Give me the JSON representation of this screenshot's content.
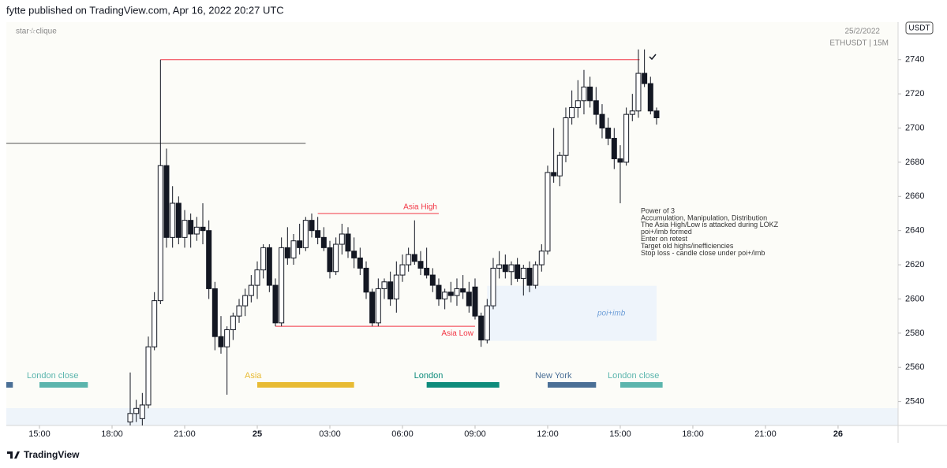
{
  "header": "fytte published on TradingView.com, Apr 16, 2022 20:27 UTC",
  "footer": "TradingView",
  "chart_data": {
    "type": "candlestick",
    "watermark": "star☆clique",
    "date_label": "25/2/2022",
    "symbol": "ETHUSDT | 15M",
    "currency": "USDT",
    "up_color": "#ffffff",
    "down_color": "#131722",
    "xlim": [
      13.63,
      50.48
    ],
    "ylim": [
      2526,
      2762
    ],
    "yticks": [
      2540,
      2560,
      2580,
      2600,
      2620,
      2640,
      2660,
      2680,
      2700,
      2720,
      2740
    ],
    "xticks": [
      {
        "value": 15,
        "label": "15:00"
      },
      {
        "value": 18,
        "label": "18:00"
      },
      {
        "value": 21,
        "label": "21:00"
      },
      {
        "value": 24,
        "label": "25"
      },
      {
        "value": 27,
        "label": "03:00"
      },
      {
        "value": 30,
        "label": "06:00"
      },
      {
        "value": 33,
        "label": "09:00"
      },
      {
        "value": 36,
        "label": "12:00"
      },
      {
        "value": 39,
        "label": "15:00"
      },
      {
        "value": 42,
        "label": "18:00"
      },
      {
        "value": 45,
        "label": "21:00"
      },
      {
        "value": 48,
        "label": "26"
      }
    ],
    "x": [
      18.75,
      19,
      19.25,
      19.5,
      19.75,
      20,
      20.25,
      20.5,
      20.75,
      21,
      21.25,
      21.5,
      21.75,
      22,
      22.25,
      22.5,
      22.75,
      23,
      23.25,
      23.5,
      23.75,
      24,
      24.25,
      24.5,
      24.75,
      25,
      25.25,
      25.5,
      25.75,
      26,
      26.25,
      26.5,
      26.75,
      27,
      27.25,
      27.5,
      27.75,
      28,
      28.25,
      28.5,
      28.75,
      29,
      29.25,
      29.5,
      29.75,
      30,
      30.25,
      30.5,
      30.75,
      31,
      31.25,
      31.5,
      31.75,
      32,
      32.25,
      32.5,
      32.75,
      33,
      33.25,
      33.5,
      33.75,
      34,
      34.25,
      34.5,
      34.75,
      35,
      35.25,
      35.5,
      35.75,
      36,
      36.25,
      36.5,
      36.75,
      37,
      37.25,
      37.5,
      37.75,
      38,
      38.25,
      38.5,
      38.75,
      39,
      39.25,
      39.5,
      39.75,
      40,
      40.25,
      40.5
    ],
    "open": [
      2528,
      2533,
      2530,
      2538,
      2572,
      2599,
      2678,
      2636,
      2656,
      2636,
      2646,
      2638,
      2642,
      2640,
      2606,
      2578,
      2572,
      2582,
      2590,
      2596,
      2602,
      2608,
      2617,
      2630,
      2608,
      2586,
      2630,
      2624,
      2634,
      2630,
      2646,
      2640,
      2636,
      2630,
      2616,
      2632,
      2638,
      2628,
      2624,
      2618,
      2604,
      2586,
      2606,
      2610,
      2600,
      2614,
      2620,
      2626,
      2622,
      2618,
      2614,
      2608,
      2600,
      2604,
      2602,
      2606,
      2604,
      2607,
      2590,
      2576,
      2596,
      2618,
      2620,
      2616,
      2620,
      2612,
      2618,
      2608,
      2620,
      2628,
      2674,
      2672,
      2684,
      2706,
      2712,
      2716,
      2724,
      2716,
      2708,
      2700,
      2694,
      2682,
      2680,
      2708,
      2710,
      2732,
      2726,
      2710
    ],
    "high": [
      2557,
      2541,
      2545,
      2578,
      2604,
      2740,
      2688,
      2666,
      2660,
      2652,
      2650,
      2648,
      2656,
      2646,
      2610,
      2590,
      2584,
      2592,
      2600,
      2606,
      2614,
      2622,
      2632,
      2632,
      2612,
      2636,
      2642,
      2638,
      2644,
      2648,
      2650,
      2648,
      2642,
      2634,
      2636,
      2644,
      2642,
      2636,
      2630,
      2622,
      2606,
      2612,
      2612,
      2616,
      2622,
      2626,
      2630,
      2646,
      2628,
      2630,
      2618,
      2612,
      2606,
      2610,
      2612,
      2614,
      2610,
      2612,
      2592,
      2600,
      2624,
      2628,
      2626,
      2622,
      2624,
      2620,
      2622,
      2622,
      2632,
      2678,
      2700,
      2686,
      2712,
      2722,
      2728,
      2734,
      2730,
      2724,
      2714,
      2706,
      2700,
      2690,
      2712,
      2720,
      2746,
      2746,
      2730,
      2712
    ],
    "low": [
      2520,
      2528,
      2526,
      2536,
      2570,
      2597,
      2630,
      2630,
      2632,
      2630,
      2630,
      2634,
      2632,
      2600,
      2570,
      2568,
      2544,
      2576,
      2586,
      2590,
      2598,
      2600,
      2612,
      2604,
      2584,
      2584,
      2620,
      2620,
      2626,
      2628,
      2636,
      2632,
      2628,
      2612,
      2614,
      2626,
      2624,
      2618,
      2614,
      2600,
      2584,
      2584,
      2600,
      2596,
      2592,
      2610,
      2616,
      2620,
      2614,
      2612,
      2604,
      2596,
      2594,
      2598,
      2596,
      2600,
      2592,
      2588,
      2572,
      2574,
      2594,
      2612,
      2612,
      2608,
      2610,
      2602,
      2604,
      2606,
      2616,
      2626,
      2668,
      2666,
      2680,
      2702,
      2706,
      2708,
      2712,
      2702,
      2694,
      2690,
      2676,
      2656,
      2678,
      2704,
      2706,
      2724,
      2708,
      2702
    ],
    "close": [
      2533,
      2536,
      2538,
      2572,
      2599,
      2678,
      2636,
      2656,
      2636,
      2646,
      2638,
      2642,
      2640,
      2606,
      2578,
      2572,
      2582,
      2590,
      2596,
      2602,
      2608,
      2617,
      2630,
      2608,
      2586,
      2630,
      2624,
      2634,
      2630,
      2646,
      2640,
      2636,
      2630,
      2616,
      2632,
      2638,
      2628,
      2624,
      2618,
      2604,
      2586,
      2606,
      2610,
      2600,
      2614,
      2620,
      2626,
      2622,
      2618,
      2614,
      2608,
      2600,
      2604,
      2602,
      2606,
      2604,
      2596,
      2590,
      2576,
      2596,
      2618,
      2620,
      2616,
      2620,
      2612,
      2618,
      2608,
      2620,
      2628,
      2674,
      2672,
      2684,
      2706,
      2712,
      2716,
      2724,
      2716,
      2708,
      2700,
      2694,
      2682,
      2680,
      2708,
      2710,
      2732,
      2726,
      2710,
      2706
    ],
    "levels": [
      {
        "y": 2740,
        "x": [
          20,
          39.8
        ],
        "color": "#f23645"
      },
      {
        "y": 2691,
        "x": [
          13.63,
          26
        ],
        "color": "#555555"
      },
      {
        "label": "Asia High",
        "y": 2650,
        "x": [
          26.5,
          31.5
        ],
        "color": "#f23645"
      },
      {
        "label": "Asia Low",
        "y": 2584,
        "x": [
          24.75,
          33
        ],
        "color": "#f23645"
      }
    ],
    "zones": [
      {
        "label": "poi+imb",
        "x": [
          33.5,
          40.5
        ],
        "y": [
          2575.5,
          2607.7
        ],
        "color": "#eef4fb",
        "label_color": "#6f9fd8"
      }
    ],
    "sessions": [
      {
        "name": null,
        "x": [
          13.63,
          13.9
        ],
        "color": "#4a6f96"
      },
      {
        "name": "London close",
        "x": [
          15,
          17
        ],
        "color": "#5bb5ad"
      },
      {
        "name": "Asia",
        "x": [
          24,
          28
        ],
        "color": "#e8bb34"
      },
      {
        "name": "London",
        "x": [
          31,
          34
        ],
        "color": "#0e8c7c"
      },
      {
        "name": "New York",
        "x": [
          36,
          38
        ],
        "color": "#4a6f96"
      },
      {
        "name": "London close",
        "x": [
          39,
          40.75
        ],
        "color": "#5bb5ad"
      }
    ],
    "note": [
      "Power of 3",
      "Accumulation, Manipulation, Distribution",
      "The Asia High/Low is attacked during LOKZ",
      "poi+/imb formed",
      "Enter on retest",
      "Target old highs/inefficiencies",
      "Stop loss - candle close under poi+/imb"
    ]
  }
}
